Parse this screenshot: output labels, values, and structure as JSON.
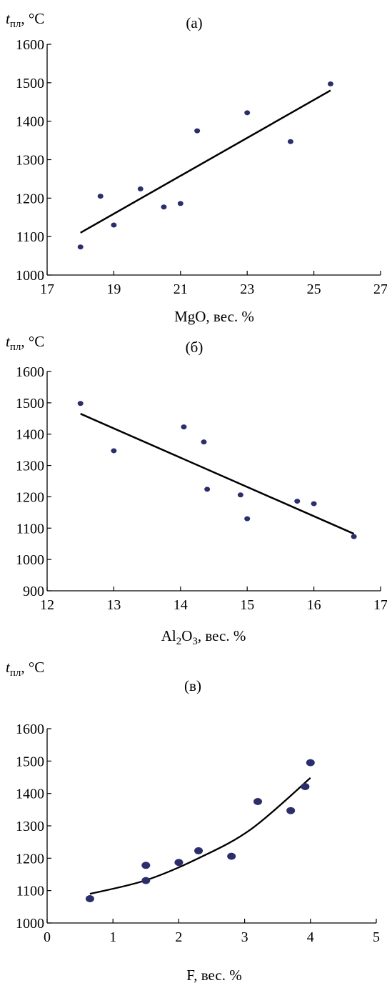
{
  "chart_data": [
    {
      "type": "scatter",
      "panel": "(а)",
      "ylabel": "tпл, °C",
      "ylabel_main": "t",
      "ylabel_sub": "пл",
      "ylabel_tail": ", °C",
      "xlabel": "MgO, вес. %",
      "xlim": [
        17,
        27
      ],
      "ylim": [
        1000,
        1600
      ],
      "xticks": [
        17,
        19,
        21,
        23,
        25,
        27
      ],
      "yticks": [
        1000,
        1100,
        1200,
        1300,
        1400,
        1500,
        1600
      ],
      "trend": {
        "kind": "linear",
        "from": [
          18,
          1110
        ],
        "to": [
          25.5,
          1480
        ]
      },
      "points": [
        {
          "x": 18.0,
          "y": 1073
        },
        {
          "x": 18.6,
          "y": 1205
        },
        {
          "x": 19.0,
          "y": 1130
        },
        {
          "x": 19.8,
          "y": 1224
        },
        {
          "x": 20.5,
          "y": 1177
        },
        {
          "x": 21.0,
          "y": 1186
        },
        {
          "x": 21.5,
          "y": 1375
        },
        {
          "x": 23.0,
          "y": 1422
        },
        {
          "x": 24.3,
          "y": 1347
        },
        {
          "x": 25.5,
          "y": 1497
        }
      ]
    },
    {
      "type": "scatter",
      "panel": "(б)",
      "ylabel": "tпл, °C",
      "ylabel_main": "t",
      "ylabel_sub": "пл",
      "ylabel_tail": ", °C",
      "xlabel": "Al2O3, вес. %",
      "xlim": [
        12,
        17
      ],
      "ylim": [
        900,
        1600
      ],
      "xticks": [
        12,
        13,
        14,
        15,
        16,
        17
      ],
      "yticks": [
        900,
        1000,
        1100,
        1200,
        1300,
        1400,
        1500,
        1600
      ],
      "trend": {
        "kind": "linear",
        "from": [
          12.5,
          1465
        ],
        "to": [
          16.6,
          1082
        ]
      },
      "points": [
        {
          "x": 12.5,
          "y": 1498
        },
        {
          "x": 13.0,
          "y": 1347
        },
        {
          "x": 14.05,
          "y": 1423
        },
        {
          "x": 14.35,
          "y": 1375
        },
        {
          "x": 14.4,
          "y": 1224
        },
        {
          "x": 14.9,
          "y": 1206
        },
        {
          "x": 15.0,
          "y": 1130
        },
        {
          "x": 15.75,
          "y": 1186
        },
        {
          "x": 16.0,
          "y": 1178
        },
        {
          "x": 16.6,
          "y": 1073
        }
      ]
    },
    {
      "type": "scatter",
      "panel": "(в)",
      "ylabel": "tпл, °C",
      "ylabel_main": "t",
      "ylabel_sub": "пл",
      "ylabel_tail": ", °C",
      "xlabel": "F, вес. %",
      "xlim": [
        0,
        5
      ],
      "ylim": [
        1000,
        1600
      ],
      "xticks": [
        0,
        1,
        2,
        3,
        4,
        5
      ],
      "yticks": [
        1000,
        1100,
        1200,
        1300,
        1400,
        1500,
        1600
      ],
      "trend": {
        "kind": "curve",
        "points": [
          [
            0.65,
            1090
          ],
          [
            1.5,
            1132
          ],
          [
            2.3,
            1200
          ],
          [
            3.1,
            1290
          ],
          [
            4.0,
            1448
          ]
        ]
      },
      "points": [
        {
          "x": 0.65,
          "y": 1075
        },
        {
          "x": 1.5,
          "y": 1178
        },
        {
          "x": 1.5,
          "y": 1131
        },
        {
          "x": 2.0,
          "y": 1187
        },
        {
          "x": 2.3,
          "y": 1223
        },
        {
          "x": 2.8,
          "y": 1206
        },
        {
          "x": 3.2,
          "y": 1375
        },
        {
          "x": 3.7,
          "y": 1347
        },
        {
          "x": 3.92,
          "y": 1421
        },
        {
          "x": 4.0,
          "y": 1495
        }
      ]
    }
  ],
  "colors": {
    "marker": "#2b2e6b",
    "line": "#000000",
    "axis": "#000000"
  }
}
